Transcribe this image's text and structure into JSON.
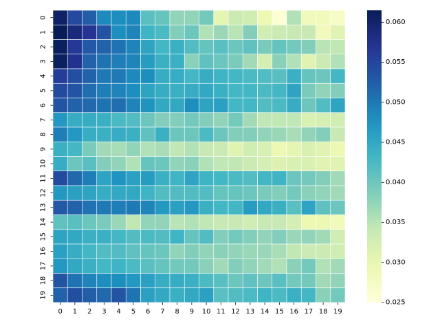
{
  "chart_data": {
    "type": "heatmap",
    "title": "",
    "xlabel": "",
    "ylabel": "",
    "x_categories": [
      "0",
      "1",
      "2",
      "3",
      "4",
      "5",
      "6",
      "7",
      "8",
      "9",
      "10",
      "11",
      "12",
      "13",
      "14",
      "15",
      "16",
      "17",
      "18",
      "19"
    ],
    "y_categories": [
      "0",
      "1",
      "2",
      "3",
      "4",
      "5",
      "6",
      "7",
      "8",
      "9",
      "10",
      "11",
      "12",
      "13",
      "14",
      "15",
      "16",
      "17",
      "18",
      "19"
    ],
    "colormap": "YlGnBu",
    "colorbar": {
      "vmin": 0.025,
      "vmax": 0.0615,
      "ticks": [
        0.025,
        0.03,
        0.035,
        0.04,
        0.045,
        0.05,
        0.055,
        0.06
      ],
      "tick_labels": [
        "0.025",
        "0.030",
        "0.035",
        "0.040",
        "0.045",
        "0.050",
        "0.055",
        "0.060"
      ]
    },
    "grid_line_color": "#ffffff",
    "values": [
      [
        0.0605,
        0.0545,
        0.0525,
        0.0485,
        0.048,
        0.0485,
        0.0415,
        0.0405,
        0.0375,
        0.0375,
        0.0395,
        0.0305,
        0.0335,
        0.033,
        0.0295,
        0.0255,
        0.0355,
        0.0285,
        0.0285,
        0.027
      ],
      [
        0.0615,
        0.059,
        0.057,
        0.0535,
        0.048,
        0.049,
        0.0435,
        0.0425,
        0.0385,
        0.04,
        0.0355,
        0.037,
        0.035,
        0.0385,
        0.033,
        0.0335,
        0.034,
        0.034,
        0.0285,
        0.031
      ],
      [
        0.061,
        0.0565,
        0.053,
        0.052,
        0.0505,
        0.049,
        0.0455,
        0.043,
        0.044,
        0.042,
        0.0405,
        0.0415,
        0.04,
        0.041,
        0.039,
        0.0405,
        0.0395,
        0.0385,
        0.035,
        0.0345
      ],
      [
        0.061,
        0.0575,
        0.052,
        0.0505,
        0.0495,
        0.049,
        0.0465,
        0.044,
        0.044,
        0.038,
        0.041,
        0.04,
        0.039,
        0.0365,
        0.0325,
        0.038,
        0.0355,
        0.031,
        0.0335,
        0.0355
      ],
      [
        0.056,
        0.054,
        0.052,
        0.05,
        0.05,
        0.0485,
        0.048,
        0.0445,
        0.0445,
        0.043,
        0.0445,
        0.0435,
        0.043,
        0.0425,
        0.042,
        0.0415,
        0.044,
        0.0405,
        0.04,
        0.043
      ],
      [
        0.0545,
        0.0535,
        0.051,
        0.0495,
        0.049,
        0.048,
        0.0455,
        0.0445,
        0.044,
        0.0445,
        0.045,
        0.044,
        0.043,
        0.043,
        0.0425,
        0.043,
        0.0455,
        0.039,
        0.0375,
        0.0385
      ],
      [
        0.0535,
        0.052,
        0.0515,
        0.0505,
        0.051,
        0.049,
        0.0475,
        0.045,
        0.045,
        0.048,
        0.0455,
        0.046,
        0.043,
        0.043,
        0.042,
        0.0425,
        0.0445,
        0.04,
        0.042,
        0.0455
      ],
      [
        0.047,
        0.0445,
        0.0445,
        0.044,
        0.0425,
        0.042,
        0.04,
        0.0385,
        0.0385,
        0.0395,
        0.0385,
        0.0375,
        0.0395,
        0.0365,
        0.0345,
        0.0345,
        0.0345,
        0.032,
        0.0325,
        0.033
      ],
      [
        0.0495,
        0.047,
        0.0445,
        0.044,
        0.0445,
        0.044,
        0.041,
        0.044,
        0.04,
        0.04,
        0.0425,
        0.04,
        0.0385,
        0.0385,
        0.0375,
        0.037,
        0.036,
        0.0375,
        0.0385,
        0.034
      ],
      [
        0.044,
        0.043,
        0.039,
        0.0365,
        0.036,
        0.0375,
        0.0355,
        0.036,
        0.0345,
        0.0355,
        0.034,
        0.0335,
        0.031,
        0.033,
        0.032,
        0.0295,
        0.0305,
        0.032,
        0.031,
        0.0295
      ],
      [
        0.0445,
        0.04,
        0.0415,
        0.0385,
        0.0375,
        0.0355,
        0.0405,
        0.04,
        0.0375,
        0.038,
        0.0355,
        0.0345,
        0.0345,
        0.0335,
        0.0325,
        0.0315,
        0.032,
        0.032,
        0.031,
        0.031
      ],
      [
        0.0545,
        0.0515,
        0.0495,
        0.0455,
        0.0475,
        0.046,
        0.0465,
        0.044,
        0.0435,
        0.0455,
        0.0435,
        0.043,
        0.0425,
        0.042,
        0.043,
        0.0435,
        0.04,
        0.0395,
        0.0385,
        0.0365
      ],
      [
        0.047,
        0.046,
        0.0455,
        0.0445,
        0.045,
        0.045,
        0.0435,
        0.042,
        0.042,
        0.042,
        0.042,
        0.0405,
        0.0405,
        0.04,
        0.039,
        0.0385,
        0.0395,
        0.038,
        0.0375,
        0.0365
      ],
      [
        0.053,
        0.052,
        0.0505,
        0.05,
        0.0495,
        0.05,
        0.049,
        0.047,
        0.046,
        0.047,
        0.044,
        0.043,
        0.043,
        0.0465,
        0.045,
        0.044,
        0.0415,
        0.0455,
        0.041,
        0.04
      ],
      [
        0.041,
        0.0415,
        0.04,
        0.039,
        0.037,
        0.0345,
        0.0375,
        0.0375,
        0.035,
        0.0355,
        0.0345,
        0.034,
        0.034,
        0.033,
        0.034,
        0.034,
        0.0325,
        0.0295,
        0.0295,
        0.0285
      ],
      [
        0.0455,
        0.045,
        0.044,
        0.044,
        0.043,
        0.042,
        0.0425,
        0.042,
        0.0435,
        0.0405,
        0.042,
        0.0385,
        0.0395,
        0.0385,
        0.0375,
        0.0385,
        0.037,
        0.0375,
        0.0365,
        0.033
      ],
      [
        0.046,
        0.0445,
        0.043,
        0.042,
        0.042,
        0.041,
        0.0405,
        0.04,
        0.0375,
        0.0385,
        0.0375,
        0.038,
        0.0375,
        0.037,
        0.037,
        0.036,
        0.0345,
        0.0335,
        0.0335,
        0.033
      ],
      [
        0.047,
        0.045,
        0.044,
        0.043,
        0.0435,
        0.0425,
        0.0415,
        0.0405,
        0.0395,
        0.0395,
        0.038,
        0.0365,
        0.0385,
        0.0375,
        0.0365,
        0.0355,
        0.038,
        0.0395,
        0.0355,
        0.0365
      ],
      [
        0.0535,
        0.0505,
        0.049,
        0.048,
        0.048,
        0.047,
        0.046,
        0.0445,
        0.0445,
        0.044,
        0.0425,
        0.0415,
        0.04,
        0.041,
        0.04,
        0.0415,
        0.0395,
        0.0395,
        0.0365,
        0.0375
      ],
      [
        0.052,
        0.054,
        0.0525,
        0.0515,
        0.0535,
        0.0505,
        0.046,
        0.045,
        0.044,
        0.045,
        0.046,
        0.0415,
        0.042,
        0.0425,
        0.0435,
        0.0425,
        0.044,
        0.043,
        0.038,
        0.0395
      ]
    ]
  }
}
